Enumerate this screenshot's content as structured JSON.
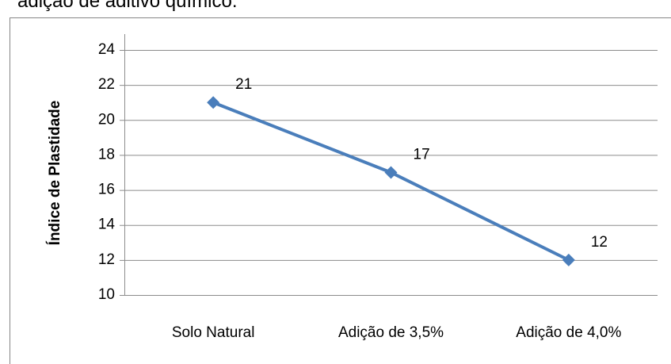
{
  "caption": "adição de aditivo químico.",
  "chart_data": {
    "type": "line",
    "y_label": "Índice de Plastidade",
    "categories": [
      "Solo Natural",
      "Adição de 3,5%",
      "Adição de 4,0%"
    ],
    "series": [
      {
        "name": "Índice de Plastidade",
        "color": "#4a7ebb",
        "values": [
          21,
          17,
          12
        ]
      }
    ],
    "ylim": [
      10,
      24
    ],
    "yticks": [
      10,
      12,
      14,
      16,
      18,
      20,
      22,
      24
    ],
    "grid": true
  }
}
